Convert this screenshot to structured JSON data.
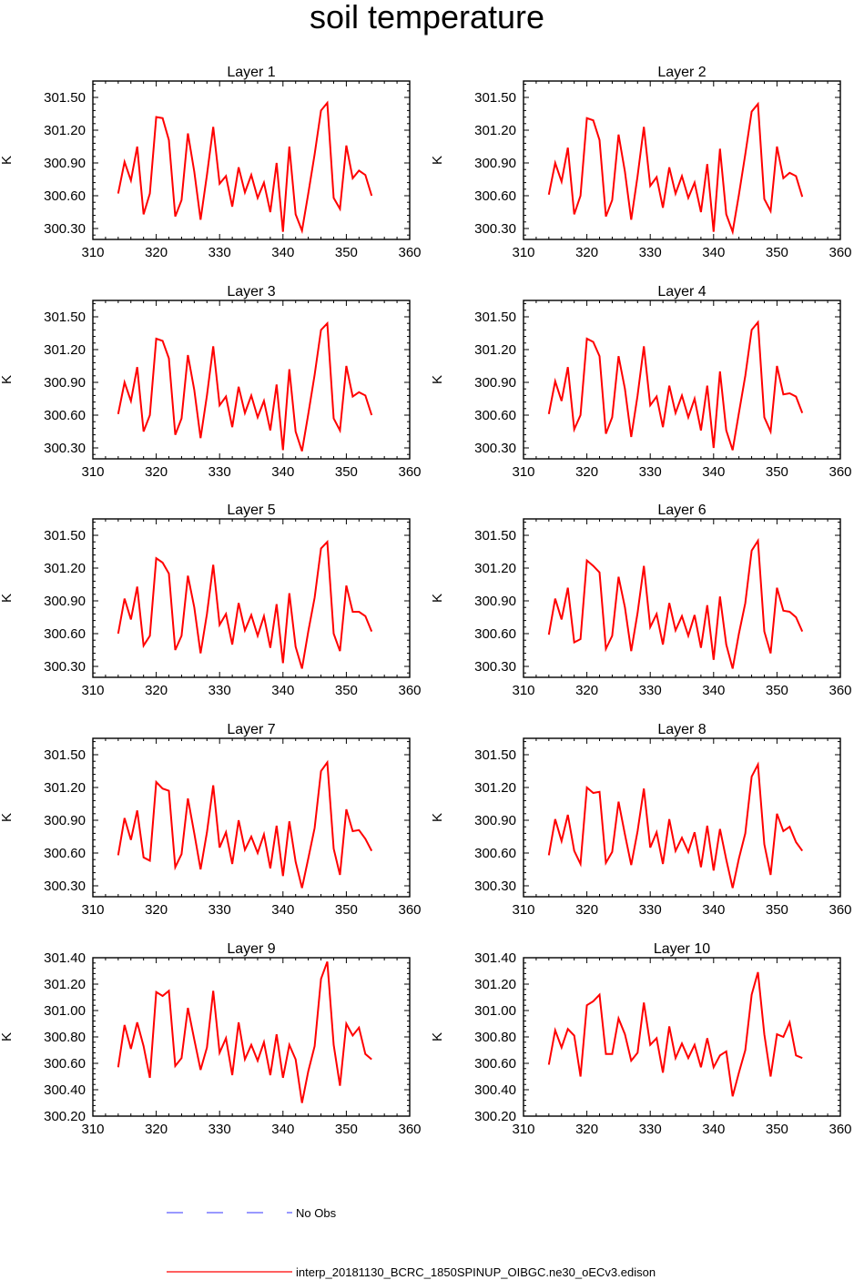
{
  "page_title": "soil temperature",
  "colors": {
    "model": "#ff0000",
    "obs": "#3333ff",
    "axis": "#000000"
  },
  "legend": {
    "obs_label": "No Obs",
    "model_label": "interp_20181130_BCRC_1850SPINUP_OIBGC.ne30_oECv3.edison"
  },
  "chart_data": [
    {
      "type": "line",
      "title": "Layer 1",
      "ylabel": "K",
      "xlim": [
        310,
        360
      ],
      "ylim": [
        300.2,
        301.65
      ],
      "xticks": [
        310,
        320,
        330,
        340,
        350,
        360
      ],
      "yticks": [
        "300.30",
        "300.60",
        "300.90",
        "301.20",
        "301.50"
      ],
      "x": [
        314,
        315,
        316,
        317,
        318,
        319,
        320,
        321,
        322,
        323,
        324,
        325,
        326,
        327,
        328,
        329,
        330,
        331,
        332,
        333,
        334,
        335,
        336,
        337,
        338,
        339,
        340,
        341,
        342,
        343,
        344,
        345,
        346,
        347,
        348,
        349,
        350,
        351,
        352,
        353,
        354
      ],
      "series": [
        {
          "values": [
            300.62,
            300.91,
            300.74,
            301.05,
            300.43,
            300.62,
            301.32,
            301.31,
            301.11,
            300.41,
            300.56,
            301.17,
            300.82,
            300.38,
            300.79,
            301.23,
            300.71,
            300.78,
            300.5,
            300.86,
            300.63,
            300.79,
            300.58,
            300.72,
            300.45,
            300.9,
            300.27,
            301.05,
            300.43,
            300.28,
            300.62,
            300.98,
            301.38,
            301.45,
            300.58,
            300.48,
            301.06,
            300.76,
            300.83,
            300.79,
            300.6
          ]
        }
      ]
    },
    {
      "type": "line",
      "title": "Layer 2",
      "ylabel": "K",
      "xlim": [
        310,
        360
      ],
      "ylim": [
        300.2,
        301.65
      ],
      "xticks": [
        310,
        320,
        330,
        340,
        350,
        360
      ],
      "yticks": [
        "300.30",
        "300.60",
        "300.90",
        "301.20",
        "301.50"
      ],
      "x": [
        314,
        315,
        316,
        317,
        318,
        319,
        320,
        321,
        322,
        323,
        324,
        325,
        326,
        327,
        328,
        329,
        330,
        331,
        332,
        333,
        334,
        335,
        336,
        337,
        338,
        339,
        340,
        341,
        342,
        343,
        344,
        345,
        346,
        347,
        348,
        349,
        350,
        351,
        352,
        353,
        354
      ],
      "series": [
        {
          "values": [
            300.61,
            300.9,
            300.73,
            301.04,
            300.43,
            300.6,
            301.31,
            301.29,
            301.11,
            300.41,
            300.56,
            301.16,
            300.82,
            300.38,
            300.78,
            301.23,
            300.69,
            300.77,
            300.49,
            300.86,
            300.62,
            300.78,
            300.58,
            300.72,
            300.45,
            300.89,
            300.27,
            301.03,
            300.43,
            300.27,
            300.61,
            300.98,
            301.37,
            301.44,
            300.57,
            300.46,
            301.05,
            300.76,
            300.81,
            300.78,
            300.59
          ]
        }
      ]
    },
    {
      "type": "line",
      "title": "Layer 3",
      "ylabel": "K",
      "xlim": [
        310,
        360
      ],
      "ylim": [
        300.2,
        301.65
      ],
      "xticks": [
        310,
        320,
        330,
        340,
        350,
        360
      ],
      "yticks": [
        "300.30",
        "300.60",
        "300.90",
        "301.20",
        "301.50"
      ],
      "x": [
        314,
        315,
        316,
        317,
        318,
        319,
        320,
        321,
        322,
        323,
        324,
        325,
        326,
        327,
        328,
        329,
        330,
        331,
        332,
        333,
        334,
        335,
        336,
        337,
        338,
        339,
        340,
        341,
        342,
        343,
        344,
        345,
        346,
        347,
        348,
        349,
        350,
        351,
        352,
        353,
        354
      ],
      "series": [
        {
          "values": [
            300.61,
            300.9,
            300.73,
            301.04,
            300.45,
            300.6,
            301.3,
            301.28,
            301.12,
            300.42,
            300.57,
            301.15,
            300.83,
            300.39,
            300.78,
            301.23,
            300.69,
            300.77,
            300.49,
            300.86,
            300.62,
            300.78,
            300.58,
            300.73,
            300.46,
            300.88,
            300.28,
            301.02,
            300.45,
            300.27,
            300.61,
            300.97,
            301.38,
            301.44,
            300.57,
            300.46,
            301.05,
            300.77,
            300.81,
            300.78,
            300.6
          ]
        }
      ]
    },
    {
      "type": "line",
      "title": "Layer 4",
      "ylabel": "K",
      "xlim": [
        310,
        360
      ],
      "ylim": [
        300.2,
        301.65
      ],
      "xticks": [
        310,
        320,
        330,
        340,
        350,
        360
      ],
      "yticks": [
        "300.30",
        "300.60",
        "300.90",
        "301.20",
        "301.50"
      ],
      "x": [
        314,
        315,
        316,
        317,
        318,
        319,
        320,
        321,
        322,
        323,
        324,
        325,
        326,
        327,
        328,
        329,
        330,
        331,
        332,
        333,
        334,
        335,
        336,
        337,
        338,
        339,
        340,
        341,
        342,
        343,
        344,
        345,
        346,
        347,
        348,
        349,
        350,
        351,
        352,
        353,
        354
      ],
      "series": [
        {
          "values": [
            300.61,
            300.91,
            300.73,
            301.04,
            300.47,
            300.6,
            301.3,
            301.27,
            301.14,
            300.43,
            300.58,
            301.14,
            300.84,
            300.4,
            300.78,
            301.23,
            300.69,
            300.77,
            300.49,
            300.87,
            300.62,
            300.78,
            300.58,
            300.75,
            300.46,
            300.87,
            300.3,
            301.0,
            300.46,
            300.28,
            300.62,
            300.96,
            301.38,
            301.45,
            300.58,
            300.45,
            301.05,
            300.79,
            300.8,
            300.77,
            300.62
          ]
        }
      ]
    },
    {
      "type": "line",
      "title": "Layer 5",
      "ylabel": "K",
      "xlim": [
        310,
        360
      ],
      "ylim": [
        300.2,
        301.65
      ],
      "xticks": [
        310,
        320,
        330,
        340,
        350,
        360
      ],
      "yticks": [
        "300.30",
        "300.60",
        "300.90",
        "301.20",
        "301.50"
      ],
      "x": [
        314,
        315,
        316,
        317,
        318,
        319,
        320,
        321,
        322,
        323,
        324,
        325,
        326,
        327,
        328,
        329,
        330,
        331,
        332,
        333,
        334,
        335,
        336,
        337,
        338,
        339,
        340,
        341,
        342,
        343,
        344,
        345,
        346,
        347,
        348,
        349,
        350,
        351,
        352,
        353,
        354
      ],
      "series": [
        {
          "values": [
            300.6,
            300.92,
            300.73,
            301.03,
            300.49,
            300.58,
            301.29,
            301.25,
            301.15,
            300.45,
            300.58,
            301.13,
            300.84,
            300.42,
            300.78,
            301.23,
            300.68,
            300.78,
            300.5,
            300.88,
            300.63,
            300.77,
            300.58,
            300.76,
            300.47,
            300.87,
            300.33,
            300.97,
            300.48,
            300.28,
            300.62,
            300.93,
            301.38,
            301.44,
            300.6,
            300.44,
            301.04,
            300.8,
            300.8,
            300.76,
            300.62
          ]
        }
      ]
    },
    {
      "type": "line",
      "title": "Layer 6",
      "ylabel": "K",
      "xlim": [
        310,
        360
      ],
      "ylim": [
        300.2,
        301.65
      ],
      "xticks": [
        310,
        320,
        330,
        340,
        350,
        360
      ],
      "yticks": [
        "300.30",
        "300.60",
        "300.90",
        "301.20",
        "301.50"
      ],
      "x": [
        314,
        315,
        316,
        317,
        318,
        319,
        320,
        321,
        322,
        323,
        324,
        325,
        326,
        327,
        328,
        329,
        330,
        331,
        332,
        333,
        334,
        335,
        336,
        337,
        338,
        339,
        340,
        341,
        342,
        343,
        344,
        345,
        346,
        347,
        348,
        349,
        350,
        351,
        352,
        353,
        354
      ],
      "series": [
        {
          "values": [
            300.59,
            300.92,
            300.73,
            301.02,
            300.52,
            300.55,
            301.27,
            301.22,
            301.16,
            300.46,
            300.58,
            301.12,
            300.84,
            300.44,
            300.79,
            301.22,
            300.66,
            300.78,
            300.5,
            300.88,
            300.63,
            300.76,
            300.58,
            300.77,
            300.47,
            300.86,
            300.36,
            300.94,
            300.5,
            300.28,
            300.6,
            300.88,
            301.36,
            301.45,
            300.62,
            300.42,
            301.02,
            300.81,
            300.8,
            300.75,
            300.62
          ]
        }
      ]
    },
    {
      "type": "line",
      "title": "Layer 7",
      "ylabel": "K",
      "xlim": [
        310,
        360
      ],
      "ylim": [
        300.2,
        301.65
      ],
      "xticks": [
        310,
        320,
        330,
        340,
        350,
        360
      ],
      "yticks": [
        "300.30",
        "300.60",
        "300.90",
        "301.20",
        "301.50"
      ],
      "x": [
        314,
        315,
        316,
        317,
        318,
        319,
        320,
        321,
        322,
        323,
        324,
        325,
        326,
        327,
        328,
        329,
        330,
        331,
        332,
        333,
        334,
        335,
        336,
        337,
        338,
        339,
        340,
        341,
        342,
        343,
        344,
        345,
        346,
        347,
        348,
        349,
        350,
        351,
        352,
        353,
        354
      ],
      "series": [
        {
          "values": [
            300.58,
            300.92,
            300.72,
            300.99,
            300.56,
            300.53,
            301.25,
            301.19,
            301.17,
            300.47,
            300.59,
            301.1,
            300.78,
            300.45,
            300.79,
            301.22,
            300.65,
            300.79,
            300.5,
            300.9,
            300.63,
            300.75,
            300.6,
            300.77,
            300.46,
            300.85,
            300.39,
            300.89,
            300.52,
            300.28,
            300.55,
            300.83,
            301.35,
            301.43,
            300.64,
            300.4,
            301.0,
            300.8,
            300.81,
            300.73,
            300.62
          ]
        }
      ]
    },
    {
      "type": "line",
      "title": "Layer 8",
      "ylabel": "K",
      "xlim": [
        310,
        360
      ],
      "ylim": [
        300.2,
        301.65
      ],
      "xticks": [
        310,
        320,
        330,
        340,
        350,
        360
      ],
      "yticks": [
        "300.30",
        "300.60",
        "300.90",
        "301.20",
        "301.50"
      ],
      "x": [
        314,
        315,
        316,
        317,
        318,
        319,
        320,
        321,
        322,
        323,
        324,
        325,
        326,
        327,
        328,
        329,
        330,
        331,
        332,
        333,
        334,
        335,
        336,
        337,
        338,
        339,
        340,
        341,
        342,
        343,
        344,
        345,
        346,
        347,
        348,
        349,
        350,
        351,
        352,
        353,
        354
      ],
      "series": [
        {
          "values": [
            300.58,
            300.91,
            300.71,
            300.95,
            300.62,
            300.5,
            301.2,
            301.15,
            301.16,
            300.51,
            300.61,
            301.07,
            300.77,
            300.49,
            300.8,
            301.19,
            300.65,
            300.79,
            300.5,
            300.91,
            300.62,
            300.74,
            300.61,
            300.79,
            300.47,
            300.85,
            300.44,
            300.82,
            300.54,
            300.28,
            300.55,
            300.78,
            301.3,
            301.41,
            300.68,
            300.4,
            300.96,
            300.8,
            300.84,
            300.7,
            300.62
          ]
        }
      ]
    },
    {
      "type": "line",
      "title": "Layer 9",
      "ylabel": "K",
      "xlim": [
        310,
        360
      ],
      "ylim": [
        300.2,
        301.4
      ],
      "xticks": [
        310,
        320,
        330,
        340,
        350,
        360
      ],
      "yticks": [
        "300.20",
        "300.40",
        "300.60",
        "300.80",
        "301.00",
        "301.20",
        "301.40"
      ],
      "x": [
        314,
        315,
        316,
        317,
        318,
        319,
        320,
        321,
        322,
        323,
        324,
        325,
        326,
        327,
        328,
        329,
        330,
        331,
        332,
        333,
        334,
        335,
        336,
        337,
        338,
        339,
        340,
        341,
        342,
        343,
        344,
        345,
        346,
        347,
        348,
        349,
        350,
        351,
        352,
        353,
        354
      ],
      "series": [
        {
          "values": [
            300.57,
            300.89,
            300.71,
            300.91,
            300.73,
            300.49,
            301.14,
            301.11,
            301.15,
            300.58,
            300.64,
            301.02,
            300.78,
            300.55,
            300.72,
            301.15,
            300.68,
            300.79,
            300.51,
            300.91,
            300.63,
            300.74,
            300.62,
            300.76,
            300.51,
            300.82,
            300.49,
            300.74,
            300.63,
            300.3,
            300.54,
            300.73,
            301.24,
            301.37,
            300.74,
            300.43,
            300.9,
            300.81,
            300.87,
            300.67,
            300.63
          ]
        }
      ]
    },
    {
      "type": "line",
      "title": "Layer 10",
      "ylabel": "K",
      "xlim": [
        310,
        360
      ],
      "ylim": [
        300.2,
        301.4
      ],
      "xticks": [
        310,
        320,
        330,
        340,
        350,
        360
      ],
      "yticks": [
        "300.20",
        "300.40",
        "300.60",
        "300.80",
        "301.00",
        "301.20",
        "301.40"
      ],
      "x": [
        314,
        315,
        316,
        317,
        318,
        319,
        320,
        321,
        322,
        323,
        324,
        325,
        326,
        327,
        328,
        329,
        330,
        331,
        332,
        333,
        334,
        335,
        336,
        337,
        338,
        339,
        340,
        341,
        342,
        343,
        344,
        345,
        346,
        347,
        348,
        349,
        350,
        351,
        352,
        353,
        354
      ],
      "series": [
        {
          "values": [
            300.59,
            300.85,
            300.72,
            300.86,
            300.81,
            300.5,
            301.04,
            301.07,
            301.12,
            300.67,
            300.67,
            300.94,
            300.82,
            300.62,
            300.68,
            301.06,
            300.74,
            300.79,
            300.53,
            300.88,
            300.64,
            300.75,
            300.64,
            300.74,
            300.57,
            300.79,
            300.57,
            300.66,
            300.69,
            300.35,
            300.53,
            300.7,
            301.12,
            301.29,
            300.82,
            300.5,
            300.82,
            300.8,
            300.91,
            300.66,
            300.64
          ]
        }
      ]
    }
  ]
}
